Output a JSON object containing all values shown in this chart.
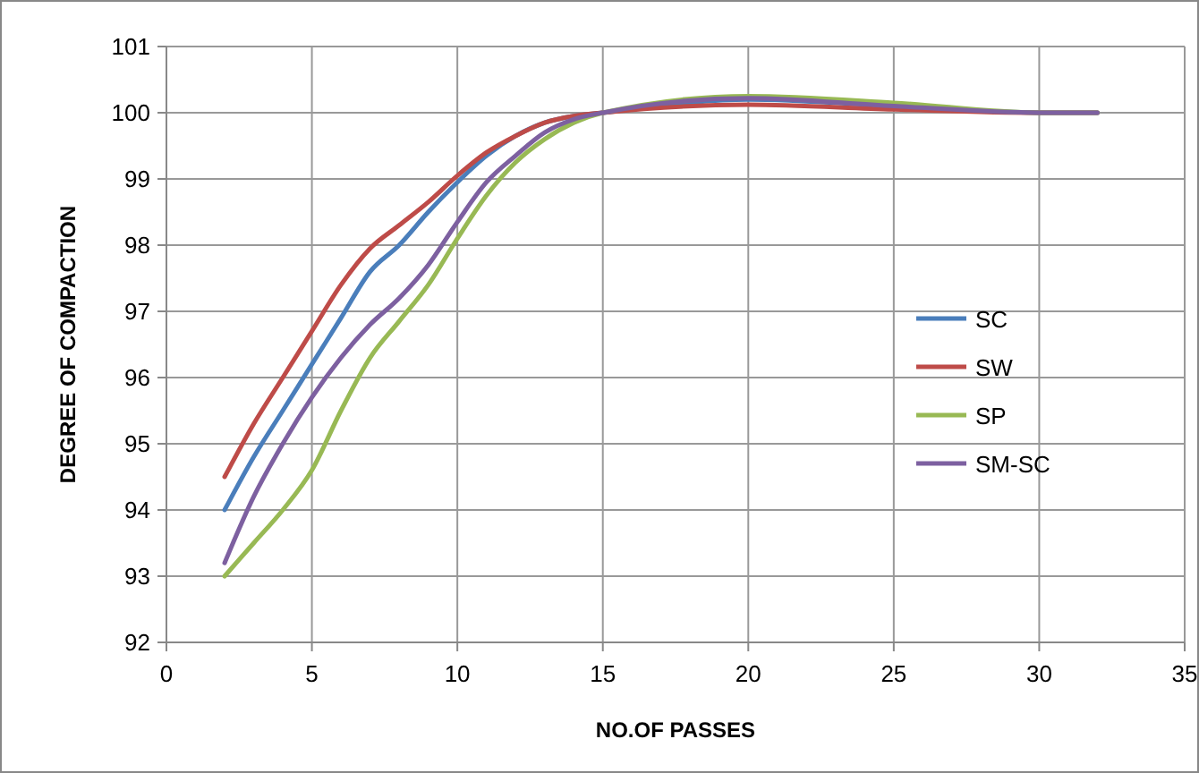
{
  "chart_data": {
    "type": "line",
    "xlabel": "NO.OF PASSES",
    "ylabel": "DEGREE OF COMPACTION",
    "x": [
      2,
      3,
      4,
      5,
      6,
      7,
      8,
      9,
      10,
      11,
      12,
      13,
      14,
      15,
      20,
      25,
      30,
      32
    ],
    "series": [
      {
        "name": "SC",
        "color": "#4a7ebb",
        "values": [
          94.0,
          94.8,
          95.5,
          96.2,
          96.9,
          97.6,
          98.0,
          98.5,
          98.95,
          99.35,
          99.65,
          99.85,
          99.95,
          100.0,
          100.2,
          100.1,
          100.0,
          100.0
        ]
      },
      {
        "name": "SW",
        "color": "#be4b48",
        "values": [
          94.5,
          95.3,
          96.0,
          96.7,
          97.4,
          97.95,
          98.3,
          98.65,
          99.05,
          99.4,
          99.65,
          99.85,
          99.95,
          100.0,
          100.12,
          100.05,
          100.0,
          100.0
        ]
      },
      {
        "name": "SP",
        "color": "#98b954",
        "values": [
          93.0,
          93.5,
          94.0,
          94.6,
          95.5,
          96.3,
          96.85,
          97.4,
          98.1,
          98.75,
          99.25,
          99.6,
          99.85,
          100.0,
          100.25,
          100.15,
          100.0,
          100.0
        ]
      },
      {
        "name": "SM-SC",
        "color": "#7d60a0",
        "values": [
          93.2,
          94.2,
          95.0,
          95.7,
          96.3,
          96.8,
          97.2,
          97.7,
          98.35,
          98.95,
          99.35,
          99.7,
          99.9,
          100.0,
          100.22,
          100.1,
          100.0,
          100.0
        ]
      }
    ],
    "xlim": [
      0,
      35
    ],
    "xticks": [
      0,
      5,
      10,
      15,
      20,
      25,
      30,
      35
    ],
    "ylim": [
      92,
      101
    ],
    "yticks": [
      92,
      93,
      94,
      95,
      96,
      97,
      98,
      99,
      100,
      101
    ],
    "grid": true,
    "legend": "right",
    "marker": "none",
    "line_style": "solid"
  }
}
